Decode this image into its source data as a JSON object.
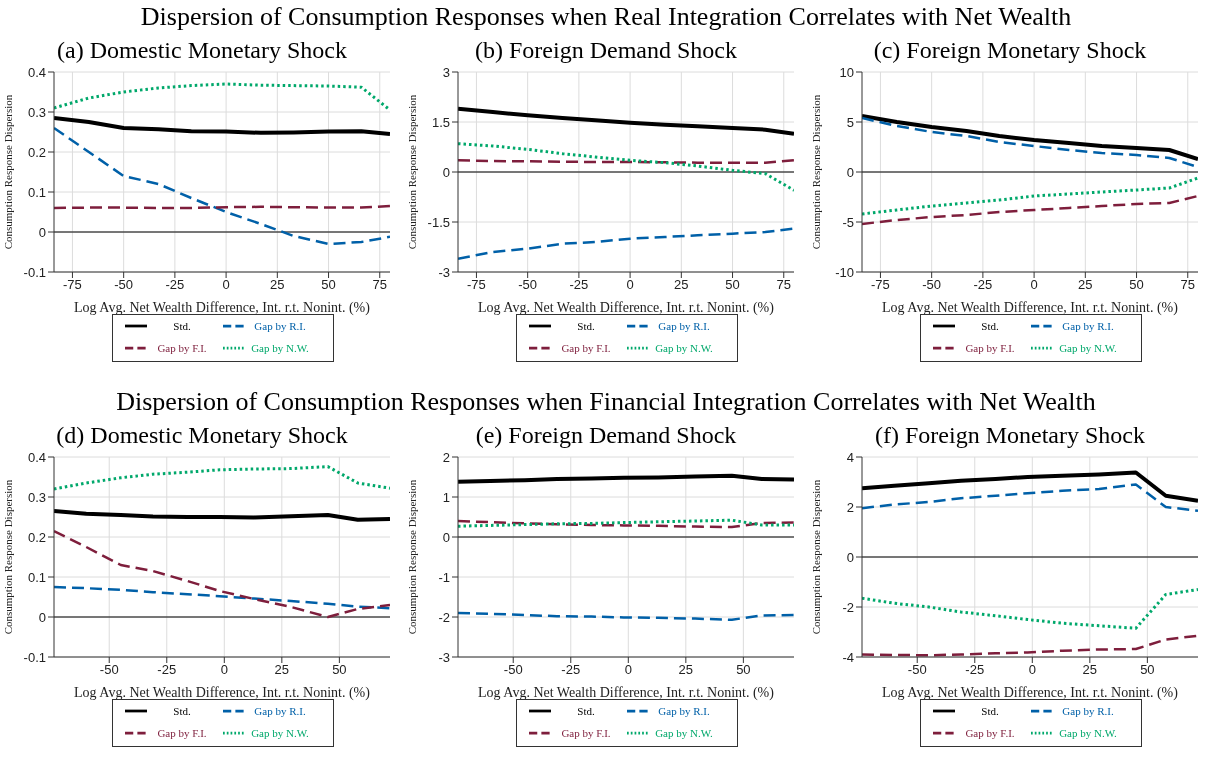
{
  "chart_data": [
    {
      "type": "line",
      "title": "Dispersion of Consumption Responses when Real Integration Correlates with Net Wealth",
      "subtitle": "(a) Domestic Monetary Shock",
      "xlabel": "Log Avg. Net Wealth Difference, Int. r.t. Nonint. (%)",
      "ylabel": "Consumption Response Dispersion",
      "x": [
        -84,
        -67,
        -50,
        -33,
        -17,
        0,
        17,
        33,
        50,
        66,
        80
      ],
      "xlim": [
        -84,
        80
      ],
      "xticks": [
        -75,
        -50,
        -25,
        0,
        25,
        50,
        75
      ],
      "ylim": [
        -0.1,
        0.4
      ],
      "yticks": [
        -0.1,
        0,
        0.1,
        0.2,
        0.3,
        0.4
      ],
      "grid": true,
      "legend": "bottom",
      "ref_lines": [
        {
          "axis": "y",
          "value": 0,
          "color": "#000000"
        }
      ],
      "series": [
        {
          "name": "Std.",
          "color": "#000000",
          "line_style": "solid",
          "values": [
            0.285,
            0.275,
            0.26,
            0.257,
            0.252,
            0.251,
            0.248,
            0.249,
            0.251,
            0.252,
            0.245
          ]
        },
        {
          "name": "Gap by R.I.",
          "color": "#0060a8",
          "line_style": "dashed",
          "values": [
            0.26,
            0.2,
            0.14,
            0.12,
            0.085,
            0.05,
            0.02,
            -0.01,
            -0.03,
            -0.025,
            -0.012
          ]
        },
        {
          "name": "Gap by F.I.",
          "color": "#7e1e3c",
          "line_style": "dashed",
          "values": [
            0.06,
            0.061,
            0.061,
            0.06,
            0.06,
            0.062,
            0.063,
            0.062,
            0.061,
            0.061,
            0.065
          ]
        },
        {
          "name": "Gap by N.W.",
          "color": "#00a86b",
          "line_style": "dotted",
          "values": [
            0.31,
            0.335,
            0.35,
            0.36,
            0.366,
            0.37,
            0.367,
            0.366,
            0.365,
            0.362,
            0.305
          ]
        }
      ]
    },
    {
      "type": "line",
      "subtitle": "(b) Foreign Demand Shock",
      "xlabel": "Log Avg. Net Wealth Difference, Int. r.t. Nonint. (%)",
      "ylabel": "Consumption Response Dispersion",
      "x": [
        -84,
        -67,
        -50,
        -33,
        -17,
        0,
        17,
        33,
        50,
        66,
        80
      ],
      "xlim": [
        -84,
        80
      ],
      "xticks": [
        -75,
        -50,
        -25,
        0,
        25,
        50,
        75
      ],
      "ylim": [
        -3,
        3
      ],
      "yticks": [
        -3,
        -1.5,
        0,
        1.5,
        3
      ],
      "grid": true,
      "legend": "bottom",
      "ref_lines": [
        {
          "axis": "y",
          "value": 0,
          "color": "#000000"
        }
      ],
      "series": [
        {
          "name": "Std.",
          "color": "#000000",
          "line_style": "solid",
          "values": [
            1.9,
            1.8,
            1.7,
            1.62,
            1.55,
            1.48,
            1.42,
            1.37,
            1.32,
            1.27,
            1.15
          ]
        },
        {
          "name": "Gap by R.I.",
          "color": "#0060a8",
          "line_style": "dashed",
          "values": [
            -2.6,
            -2.4,
            -2.3,
            -2.15,
            -2.1,
            -2.0,
            -1.95,
            -1.9,
            -1.85,
            -1.8,
            -1.7
          ]
        },
        {
          "name": "Gap by F.I.",
          "color": "#7e1e3c",
          "line_style": "dashed",
          "values": [
            0.35,
            0.33,
            0.32,
            0.31,
            0.3,
            0.3,
            0.29,
            0.28,
            0.28,
            0.28,
            0.35
          ]
        },
        {
          "name": "Gap by N.W.",
          "color": "#00a86b",
          "line_style": "dotted",
          "values": [
            0.85,
            0.78,
            0.68,
            0.55,
            0.45,
            0.35,
            0.28,
            0.18,
            0.05,
            -0.05,
            -0.55
          ]
        }
      ]
    },
    {
      "type": "line",
      "subtitle": "(c) Foreign Monetary Shock",
      "xlabel": "Log Avg. Net Wealth Difference, Int. r.t. Nonint. (%)",
      "ylabel": "Consumption Response Dispersion",
      "x": [
        -84,
        -67,
        -50,
        -33,
        -17,
        0,
        17,
        33,
        50,
        66,
        80
      ],
      "xlim": [
        -84,
        80
      ],
      "xticks": [
        -75,
        -50,
        -25,
        0,
        25,
        50,
        75
      ],
      "ylim": [
        -10,
        10
      ],
      "yticks": [
        -10,
        -5,
        0,
        5,
        10
      ],
      "grid": true,
      "legend": "bottom",
      "ref_lines": [
        {
          "axis": "y",
          "value": 0,
          "color": "#000000"
        }
      ],
      "series": [
        {
          "name": "Std.",
          "color": "#000000",
          "line_style": "solid",
          "values": [
            5.6,
            5.0,
            4.5,
            4.1,
            3.6,
            3.2,
            2.9,
            2.6,
            2.4,
            2.2,
            1.3
          ]
        },
        {
          "name": "Gap by R.I.",
          "color": "#0060a8",
          "line_style": "dashed",
          "values": [
            5.4,
            4.6,
            4.0,
            3.6,
            3.0,
            2.6,
            2.2,
            1.9,
            1.7,
            1.4,
            0.5
          ]
        },
        {
          "name": "Gap by F.I.",
          "color": "#7e1e3c",
          "line_style": "dashed",
          "values": [
            -5.2,
            -4.8,
            -4.5,
            -4.3,
            -4.0,
            -3.8,
            -3.6,
            -3.4,
            -3.2,
            -3.1,
            -2.4
          ]
        },
        {
          "name": "Gap by N.W.",
          "color": "#00a86b",
          "line_style": "dotted",
          "values": [
            -4.2,
            -3.8,
            -3.4,
            -3.1,
            -2.8,
            -2.4,
            -2.2,
            -2.0,
            -1.8,
            -1.6,
            -0.6
          ]
        }
      ]
    },
    {
      "type": "line",
      "title": "Dispersion of Consumption Responses when Financial Integration Correlates with Net Wealth",
      "subtitle": "(d) Domestic Monetary Shock",
      "xlabel": "Log Avg. Net Wealth Difference, Int. r.t. Nonint. (%)",
      "ylabel": "Consumption Response Dispersion",
      "x": [
        -74,
        -60,
        -45,
        -31,
        -16,
        -2,
        13,
        29,
        45,
        58,
        72
      ],
      "xlim": [
        -74,
        72
      ],
      "xticks": [
        -50,
        -25,
        0,
        25,
        50
      ],
      "ylim": [
        -0.1,
        0.4
      ],
      "yticks": [
        -0.1,
        0,
        0.1,
        0.2,
        0.3,
        0.4
      ],
      "grid": true,
      "legend": "bottom",
      "ref_lines": [
        {
          "axis": "y",
          "value": 0,
          "color": "#000000"
        }
      ],
      "series": [
        {
          "name": "Std.",
          "color": "#000000",
          "line_style": "solid",
          "values": [
            0.265,
            0.258,
            0.255,
            0.251,
            0.25,
            0.25,
            0.249,
            0.252,
            0.255,
            0.243,
            0.245
          ]
        },
        {
          "name": "Gap by R.I.",
          "color": "#0060a8",
          "line_style": "dashed",
          "values": [
            0.075,
            0.072,
            0.068,
            0.062,
            0.057,
            0.052,
            0.046,
            0.04,
            0.033,
            0.026,
            0.022
          ]
        },
        {
          "name": "Gap by F.I.",
          "color": "#7e1e3c",
          "line_style": "dashed",
          "values": [
            0.215,
            0.175,
            0.13,
            0.115,
            0.09,
            0.065,
            0.045,
            0.025,
            0.0,
            0.02,
            0.03
          ]
        },
        {
          "name": "Gap by N.W.",
          "color": "#00a86b",
          "line_style": "dotted",
          "values": [
            0.32,
            0.335,
            0.348,
            0.357,
            0.362,
            0.368,
            0.37,
            0.371,
            0.376,
            0.335,
            0.322
          ]
        }
      ]
    },
    {
      "type": "line",
      "subtitle": "(e) Foreign Demand Shock",
      "xlabel": "Log Avg. Net Wealth Difference, Int. r.t. Nonint. (%)",
      "ylabel": "Consumption Response Dispersion",
      "x": [
        -74,
        -60,
        -45,
        -31,
        -16,
        -2,
        13,
        29,
        45,
        58,
        72
      ],
      "xlim": [
        -74,
        72
      ],
      "xticks": [
        -50,
        -25,
        0,
        25,
        50
      ],
      "ylim": [
        -3,
        2
      ],
      "yticks": [
        -3,
        -2,
        -1,
        0,
        1,
        2
      ],
      "grid": true,
      "legend": "bottom",
      "ref_lines": [
        {
          "axis": "y",
          "value": 0,
          "color": "#000000"
        }
      ],
      "series": [
        {
          "name": "Std.",
          "color": "#000000",
          "line_style": "solid",
          "values": [
            1.38,
            1.4,
            1.42,
            1.45,
            1.46,
            1.48,
            1.49,
            1.51,
            1.53,
            1.45,
            1.44
          ]
        },
        {
          "name": "Gap by R.I.",
          "color": "#0060a8",
          "line_style": "dashed",
          "values": [
            -1.9,
            -1.92,
            -1.95,
            -1.98,
            -1.99,
            -2.01,
            -2.02,
            -2.04,
            -2.07,
            -1.96,
            -1.95
          ]
        },
        {
          "name": "Gap by F.I.",
          "color": "#7e1e3c",
          "line_style": "dashed",
          "values": [
            0.4,
            0.37,
            0.34,
            0.32,
            0.3,
            0.29,
            0.28,
            0.26,
            0.25,
            0.35,
            0.36
          ]
        },
        {
          "name": "Gap by N.W.",
          "color": "#00a86b",
          "line_style": "dotted",
          "values": [
            0.27,
            0.29,
            0.31,
            0.33,
            0.34,
            0.36,
            0.38,
            0.4,
            0.42,
            0.3,
            0.3
          ]
        }
      ]
    },
    {
      "type": "line",
      "subtitle": "(f) Foreign Monetary Shock",
      "xlabel": "Log Avg. Net Wealth Difference, Int. r.t. Nonint. (%)",
      "ylabel": "Consumption Response Dispersion",
      "x": [
        -74,
        -60,
        -45,
        -31,
        -16,
        -2,
        13,
        29,
        45,
        58,
        72
      ],
      "xlim": [
        -74,
        72
      ],
      "xticks": [
        -50,
        -25,
        0,
        25,
        50
      ],
      "ylim": [
        -4,
        4
      ],
      "yticks": [
        -4,
        -2,
        0,
        2,
        4
      ],
      "grid": true,
      "legend": "bottom",
      "ref_lines": [
        {
          "axis": "y",
          "value": 0,
          "color": "#000000"
        }
      ],
      "series": [
        {
          "name": "Std.",
          "color": "#000000",
          "line_style": "solid",
          "values": [
            2.75,
            2.85,
            2.95,
            3.05,
            3.12,
            3.2,
            3.25,
            3.3,
            3.38,
            2.45,
            2.25
          ]
        },
        {
          "name": "Gap by R.I.",
          "color": "#0060a8",
          "line_style": "dashed",
          "values": [
            1.95,
            2.1,
            2.2,
            2.35,
            2.45,
            2.55,
            2.65,
            2.72,
            2.9,
            2.0,
            1.85
          ]
        },
        {
          "name": "Gap by F.I.",
          "color": "#7e1e3c",
          "line_style": "dashed",
          "values": [
            -3.9,
            -3.92,
            -3.93,
            -3.9,
            -3.85,
            -3.82,
            -3.75,
            -3.7,
            -3.68,
            -3.3,
            -3.15
          ]
        },
        {
          "name": "Gap by N.W.",
          "color": "#00a86b",
          "line_style": "dotted",
          "values": [
            -1.65,
            -1.85,
            -2.0,
            -2.2,
            -2.35,
            -2.5,
            -2.65,
            -2.75,
            -2.85,
            -1.5,
            -1.3
          ]
        }
      ]
    }
  ]
}
